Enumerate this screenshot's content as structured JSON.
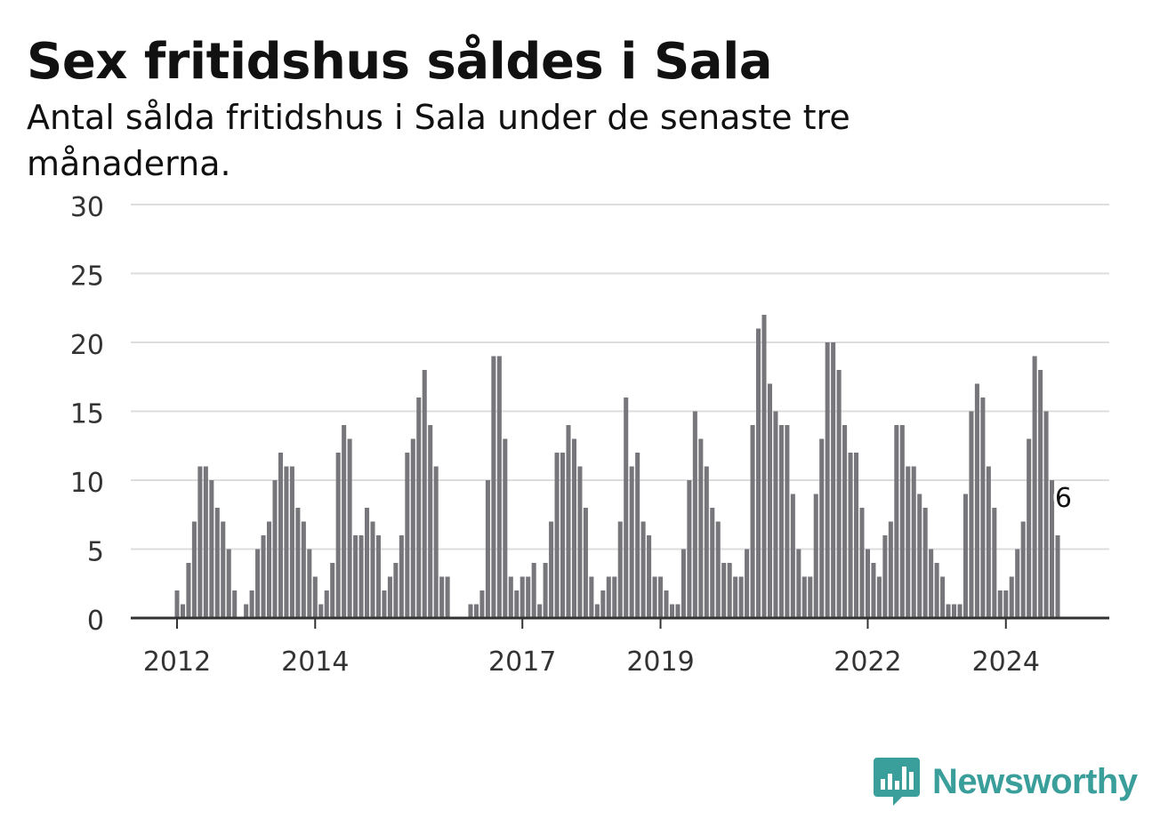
{
  "title": "Sex fritidshus såldes i Sala",
  "subtitle": "Antal sålda fritidshus i Sala under de senaste tre månaderna.",
  "logo": {
    "text": "Newsworthy",
    "icon": "bar-chart-bubble-icon",
    "color": "#3a9e9b"
  },
  "colors": {
    "bar": "#77767b",
    "highlight": "#14a49b",
    "grid": "#dddddd",
    "axis": "#333333"
  },
  "chart_data": {
    "type": "bar",
    "title": "Sex fritidshus såldes i Sala",
    "subtitle": "Antal sålda fritidshus i Sala under de senaste tre månaderna.",
    "ylim": [
      0,
      30
    ],
    "yticks": [
      0,
      5,
      10,
      15,
      20,
      25,
      30
    ],
    "y_tick_labels": [
      "0",
      "5",
      "10",
      "15",
      "20",
      "25",
      "30"
    ],
    "grid": true,
    "x_tick_labels": [
      {
        "label": "2012",
        "month": "2012-01"
      },
      {
        "label": "2014",
        "month": "2014-01"
      },
      {
        "label": "2017",
        "month": "2017-01"
      },
      {
        "label": "2019",
        "month": "2019-01"
      },
      {
        "label": "2022",
        "month": "2022-01"
      },
      {
        "label": "2024",
        "month": "2024-01"
      }
    ],
    "series": [
      {
        "start_month": "2011-05",
        "end_month": "2024-11",
        "values": [
          0,
          0,
          0,
          0,
          0,
          0,
          0,
          0,
          2,
          1,
          4,
          7,
          11,
          11,
          10,
          8,
          7,
          5,
          2,
          0,
          1,
          2,
          5,
          6,
          7,
          10,
          12,
          11,
          11,
          8,
          7,
          5,
          3,
          1,
          2,
          4,
          12,
          14,
          13,
          6,
          6,
          8,
          7,
          6,
          2,
          3,
          4,
          6,
          12,
          13,
          16,
          18,
          14,
          11,
          3,
          3,
          0,
          0,
          0,
          1,
          1,
          2,
          10,
          19,
          19,
          13,
          3,
          2,
          3,
          3,
          4,
          1,
          4,
          7,
          12,
          12,
          14,
          13,
          11,
          8,
          3,
          1,
          2,
          3,
          3,
          7,
          16,
          11,
          12,
          7,
          6,
          3,
          3,
          2,
          1,
          1,
          5,
          10,
          15,
          13,
          11,
          8,
          7,
          4,
          4,
          3,
          3,
          5,
          14,
          21,
          22,
          17,
          15,
          14,
          14,
          9,
          5,
          3,
          3,
          9,
          13,
          20,
          20,
          18,
          14,
          12,
          12,
          8,
          5,
          4,
          3,
          6,
          7,
          14,
          14,
          11,
          11,
          9,
          8,
          5,
          4,
          3,
          1,
          1,
          1,
          9,
          15,
          17,
          16,
          11,
          8,
          2,
          2,
          3,
          5,
          7,
          13,
          19,
          18,
          15,
          10,
          6
        ]
      }
    ],
    "highlight": {
      "month": "2024-11",
      "value": 6,
      "label": "6"
    }
  }
}
